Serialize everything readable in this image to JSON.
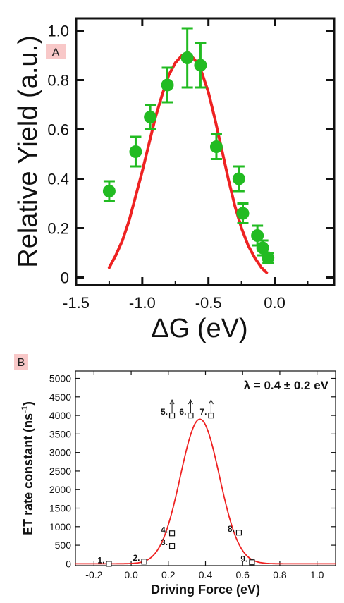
{
  "chart_data": [
    {
      "type": "scatter",
      "panel_label": "A",
      "xlabel": "ΔG (eV)",
      "ylabel": "Relative Yield (a.u.)",
      "xlim": [
        -1.5,
        0.45
      ],
      "ylim": [
        -0.03,
        1.05
      ],
      "x_ticks": [
        -1.5,
        -1.0,
        -0.5,
        0.0
      ],
      "x_tick_labels": [
        "-1.5",
        "-1.0",
        "-0.5",
        "0.0"
      ],
      "y_ticks": [
        0,
        0.2,
        0.4,
        0.6,
        0.8,
        1.0
      ],
      "y_tick_labels": [
        "0",
        "0.2",
        "0.4",
        "0.6",
        "0.8",
        "1.0"
      ],
      "marker_color": "#22bb22",
      "fit_color": "#ee2222",
      "points": [
        {
          "x": -1.25,
          "y": 0.35,
          "err": 0.04
        },
        {
          "x": -1.05,
          "y": 0.51,
          "err": 0.06
        },
        {
          "x": -0.94,
          "y": 0.65,
          "err": 0.05
        },
        {
          "x": -0.81,
          "y": 0.78,
          "err": 0.07
        },
        {
          "x": -0.66,
          "y": 0.89,
          "err": 0.12
        },
        {
          "x": -0.56,
          "y": 0.86,
          "err": 0.09
        },
        {
          "x": -0.44,
          "y": 0.53,
          "err": 0.05
        },
        {
          "x": -0.27,
          "y": 0.4,
          "err": 0.05
        },
        {
          "x": -0.24,
          "y": 0.26,
          "err": 0.04
        },
        {
          "x": -0.13,
          "y": 0.17,
          "err": 0.04
        },
        {
          "x": -0.09,
          "y": 0.12,
          "err": 0.03
        },
        {
          "x": -0.05,
          "y": 0.08,
          "err": 0.02
        }
      ],
      "fit_curve": {
        "x": [
          -1.25,
          -1.2,
          -1.15,
          -1.1,
          -1.05,
          -1.0,
          -0.95,
          -0.9,
          -0.85,
          -0.8,
          -0.75,
          -0.7,
          -0.65,
          -0.6,
          -0.55,
          -0.5,
          -0.45,
          -0.4,
          -0.35,
          -0.3,
          -0.25,
          -0.2,
          -0.15,
          -0.1,
          -0.06
        ],
        "y": [
          0.04,
          0.09,
          0.15,
          0.23,
          0.33,
          0.43,
          0.54,
          0.65,
          0.74,
          0.82,
          0.87,
          0.9,
          0.91,
          0.88,
          0.83,
          0.75,
          0.64,
          0.52,
          0.4,
          0.29,
          0.2,
          0.13,
          0.08,
          0.04,
          0.02
        ]
      }
    },
    {
      "type": "scatter",
      "panel_label": "B",
      "annotation": "λ = 0.4 ± 0.2 eV",
      "xlabel": "Driving Force (eV)",
      "ylabel": "ET rate constant (ns-1)",
      "ylabel_text": "ET rate constant (ns",
      "ylabel_sup": "-1",
      "ylabel_close": ")",
      "xlim": [
        -0.3,
        1.1
      ],
      "ylim": [
        -50,
        5200
      ],
      "x_ticks": [
        -0.2,
        0.0,
        0.2,
        0.4,
        0.6,
        0.8,
        1.0
      ],
      "x_tick_labels": [
        "-0.2",
        "0.0",
        "0.2",
        "0.4",
        "0.6",
        "0.8",
        "1.0"
      ],
      "y_ticks": [
        0,
        500,
        1000,
        1500,
        2000,
        2500,
        3000,
        3500,
        4000,
        4500,
        5000
      ],
      "y_tick_labels": [
        "0",
        "500",
        "1000",
        "1500",
        "2000",
        "2500",
        "3000",
        "3500",
        "4000",
        "4500",
        "5000"
      ],
      "fit_color": "#ee2222",
      "fit_peak": {
        "center": 0.37,
        "sigma": 0.105,
        "amplitude": 3900
      },
      "points": [
        {
          "label": "1.",
          "x": -0.12,
          "y": 0
        },
        {
          "label": "2.",
          "x": 0.07,
          "y": 60
        },
        {
          "label": "3.",
          "x": 0.22,
          "y": 480
        },
        {
          "label": "4.",
          "x": 0.22,
          "y": 820
        },
        {
          "label": "5.",
          "x": 0.22,
          "y": 4000,
          "lower_bound": true
        },
        {
          "label": "6.",
          "x": 0.32,
          "y": 4000,
          "lower_bound": true
        },
        {
          "label": "7.",
          "x": 0.43,
          "y": 4000,
          "lower_bound": true
        },
        {
          "label": "8.",
          "x": 0.58,
          "y": 840
        },
        {
          "label": "9.",
          "x": 0.65,
          "y": 40
        }
      ]
    }
  ]
}
